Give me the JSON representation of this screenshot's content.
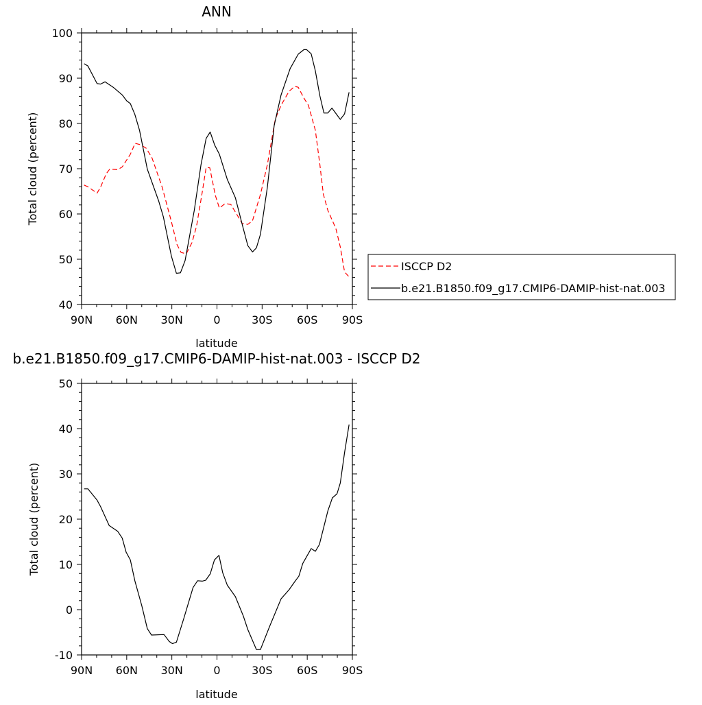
{
  "chart_data": [
    {
      "type": "line",
      "title": "ANN",
      "xlabel": "latitude",
      "ylabel": "Total cloud (percent)",
      "xlim": [
        90,
        -90
      ],
      "ylim": [
        40,
        100
      ],
      "x_ticks": [
        {
          "value": 90,
          "label": "90N"
        },
        {
          "value": 60,
          "label": "60N"
        },
        {
          "value": 30,
          "label": "30N"
        },
        {
          "value": 0,
          "label": "0"
        },
        {
          "value": -30,
          "label": "30S"
        },
        {
          "value": -60,
          "label": "60S"
        },
        {
          "value": -90,
          "label": "90S"
        }
      ],
      "y_ticks": [
        40,
        50,
        60,
        70,
        80,
        90,
        100
      ],
      "grid": false,
      "legend": "right",
      "series": [
        {
          "name": "ISCCP D2",
          "color": "#ff0000",
          "dash": "dashed",
          "x": [
            88.3,
            85.8,
            79.7,
            77.4,
            73.6,
            71.3,
            66,
            63,
            57.6,
            54.4,
            50.8,
            47,
            43.2,
            36.4,
            30.3,
            26.5,
            23.9,
            20.4,
            16.6,
            13.6,
            9.8,
            7.2,
            4.8,
            1.1,
            -1.6,
            -5.4,
            -9.2,
            -16.8,
            -20.5,
            -23.6,
            -28.9,
            -33.5,
            -38.8,
            -42.6,
            -47.9,
            -51.7,
            -54,
            -57.8,
            -60.8,
            -65.4,
            -68.4,
            -70.7,
            -73.7,
            -79,
            -82,
            -84.8,
            -87.8
          ],
          "y": [
            66.4,
            66,
            64.6,
            65.9,
            68.9,
            69.9,
            69.8,
            70.4,
            73.2,
            75.6,
            75.3,
            74.5,
            72.4,
            65.9,
            58.3,
            53.2,
            51.5,
            51.2,
            53.7,
            57.3,
            64.8,
            70.3,
            70.2,
            64.1,
            61.3,
            62.3,
            62.1,
            57.9,
            57.7,
            58.5,
            64.3,
            70.9,
            81,
            84,
            87.1,
            88.2,
            88,
            85.6,
            84,
            78.5,
            70.9,
            64.4,
            60.8,
            56.8,
            52.7,
            47.2,
            46.1
          ]
        },
        {
          "name": "b.e21.B1850.f09_g17.CMIP6-DAMIP-hist-nat.003",
          "color": "#000000",
          "dash": "solid",
          "x": [
            88.3,
            85.8,
            79.7,
            77.4,
            74.4,
            69,
            63,
            60,
            57.6,
            54.6,
            51.5,
            46.3,
            38.7,
            35.6,
            30.3,
            27,
            24.3,
            21.2,
            15.1,
            10.6,
            7.2,
            4.5,
            1.5,
            -1.6,
            -6.9,
            -12.2,
            -16.7,
            -20.5,
            -23.6,
            -26.2,
            -28.9,
            -33.5,
            -38,
            -42.6,
            -48.6,
            -54,
            -57.8,
            -59.6,
            -62.6,
            -65.4,
            -68.4,
            -71.1,
            -73.7,
            -76.4,
            -82,
            -84.8,
            -87.8
          ],
          "y": [
            93.2,
            92.7,
            88.8,
            88.7,
            89.2,
            88,
            86.3,
            85,
            84.4,
            82,
            78.5,
            69.9,
            62.8,
            59.3,
            50.7,
            46.9,
            47,
            49.7,
            60.8,
            70.9,
            76.7,
            78.1,
            75.2,
            73.2,
            67.6,
            63.6,
            57.8,
            53,
            51.6,
            52.5,
            55.5,
            65.9,
            79.5,
            86.3,
            92.1,
            95.3,
            96.3,
            96.3,
            95.4,
            91.6,
            86.1,
            82.3,
            82.3,
            83.4,
            80.9,
            82.1,
            86.9
          ]
        }
      ]
    },
    {
      "type": "line",
      "title": "b.e21.B1850.f09_g17.CMIP6-DAMIP-hist-nat.003 - ISCCP D2",
      "xlabel": "latitude",
      "ylabel": "Total cloud (percent)",
      "xlim": [
        90,
        -90
      ],
      "ylim": [
        -10,
        50
      ],
      "x_ticks": [
        {
          "value": 90,
          "label": "90N"
        },
        {
          "value": 60,
          "label": "60N"
        },
        {
          "value": 30,
          "label": "30N"
        },
        {
          "value": 0,
          "label": "0"
        },
        {
          "value": -30,
          "label": "30S"
        },
        {
          "value": -60,
          "label": "60S"
        },
        {
          "value": -90,
          "label": "90S"
        }
      ],
      "y_ticks": [
        -10,
        0,
        10,
        20,
        30,
        40,
        50
      ],
      "grid": false,
      "series": [
        {
          "color": "#000000",
          "dash": "solid",
          "x": [
            88.3,
            85.8,
            79.7,
            77.4,
            71.7,
            66,
            63,
            60.4,
            57.6,
            54.6,
            50,
            46.3,
            43.5,
            35.2,
            31.8,
            29.6,
            27,
            22,
            15.9,
            12.9,
            9.8,
            7.5,
            4.5,
            1.7,
            -1.3,
            -3.8,
            -6.9,
            -12.2,
            -17.5,
            -20.5,
            -26.2,
            -28.9,
            -35,
            -42.6,
            -47.9,
            -51.7,
            -54.4,
            -57,
            -62.6,
            -65.4,
            -68.1,
            -73.7,
            -76.7,
            -79.8,
            -82,
            -84.8,
            -87.8
          ],
          "y": [
            26.7,
            26.7,
            24.2,
            22.8,
            18.6,
            17.3,
            15.8,
            12.7,
            11,
            6.4,
            0.9,
            -4.2,
            -5.6,
            -5.5,
            -7,
            -7.5,
            -7.2,
            -1.9,
            4.9,
            6.4,
            6.3,
            6.5,
            7.9,
            11,
            12,
            8.2,
            5.4,
            2.9,
            -1.4,
            -4.4,
            -8.8,
            -8.8,
            -3.7,
            2.4,
            4.4,
            6.2,
            7.4,
            10.2,
            13.5,
            12.9,
            14.4,
            21.8,
            24.7,
            25.6,
            28,
            34.7,
            40.9
          ]
        }
      ]
    }
  ]
}
